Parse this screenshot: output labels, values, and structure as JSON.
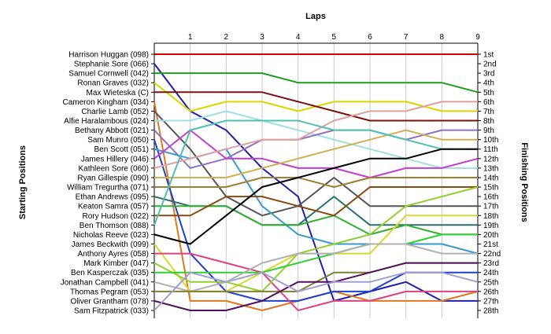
{
  "chart_data": {
    "type": "line",
    "title": "",
    "xlabel": "Laps",
    "ylabel_left": "Starting Positions",
    "ylabel_right": "Finishing Positions",
    "x_ticks": [
      1,
      2,
      3,
      4,
      5,
      6,
      7,
      8,
      9
    ],
    "xlim": [
      0,
      9
    ],
    "ylim": [
      1,
      28
    ],
    "grid": "vertical",
    "finish_labels": [
      "1st",
      "2nd",
      "3rd",
      "4th",
      "5th",
      "6th",
      "7th",
      "8th",
      "9th",
      "10th",
      "11th",
      "12th",
      "13th",
      "14th",
      "15th",
      "16th",
      "17th",
      "18th",
      "19th",
      "20th",
      "21st",
      "22nd",
      "23rd",
      "24th",
      "25th",
      "26th",
      "27th",
      "28th"
    ],
    "series": [
      {
        "name": "Harrison Huggan (098)",
        "color": "#d00000",
        "positions": [
          1,
          1,
          1,
          1,
          1,
          1,
          1,
          1,
          1,
          1
        ]
      },
      {
        "name": "Stephanie Sore (066)",
        "color": "#1f1fb0",
        "positions": [
          2,
          7,
          9,
          13,
          16,
          27,
          26,
          25,
          27,
          27
        ]
      },
      {
        "name": "Samuel Cornwell (042)",
        "color": "#1e9e1e",
        "positions": [
          3,
          3,
          3,
          3,
          4,
          4,
          4,
          4,
          4,
          5
        ]
      },
      {
        "name": "Ronan Graves (032)",
        "color": "#d8d800",
        "positions": [
          4,
          7,
          6,
          6,
          7,
          6,
          6,
          6,
          7,
          7
        ]
      },
      {
        "name": "Max Wieteska (C)",
        "color": "#7a1010",
        "positions": [
          5,
          5,
          5,
          5,
          6,
          7,
          8,
          8,
          8,
          8
        ]
      },
      {
        "name": "Cameron Kingham (034)",
        "color": "#e07820",
        "positions": [
          6,
          27,
          27,
          28,
          27,
          26,
          27,
          27,
          27,
          26
        ]
      },
      {
        "name": "Charlie Lamb (052)",
        "color": "#555555",
        "positions": [
          7,
          11,
          16,
          18,
          17,
          14,
          17,
          17,
          17,
          17
        ]
      },
      {
        "name": "Alfie Haralambous (024)",
        "color": "#a0e0e0",
        "positions": [
          8,
          8,
          7,
          8,
          9,
          10,
          11,
          12,
          13,
          13
        ]
      },
      {
        "name": "Bethany Abbott (021)",
        "color": "#9070c0",
        "positions": [
          9,
          13,
          12,
          10,
          10,
          9,
          9,
          10,
          9,
          9
        ]
      },
      {
        "name": "Sam Munro (050)",
        "color": "#2040d0",
        "positions": [
          10,
          22,
          26,
          27,
          27,
          26,
          26,
          24,
          24,
          24
        ]
      },
      {
        "name": "Ben Scott (051)",
        "color": "#3a9ad0",
        "positions": [
          11,
          12,
          11,
          17,
          20,
          21,
          21,
          21,
          21,
          22
        ]
      },
      {
        "name": "James Hillery (046)",
        "color": "#c040d0",
        "positions": [
          12,
          9,
          12,
          12,
          13,
          13,
          14,
          13,
          13,
          12
        ]
      },
      {
        "name": "Kathleen Sore (060)",
        "color": "#e0a0a0",
        "positions": [
          13,
          12,
          11,
          10,
          10,
          8,
          7,
          7,
          6,
          6
        ]
      },
      {
        "name": "Ryan Gillespie (090)",
        "color": "#d0b050",
        "positions": [
          14,
          14,
          14,
          13,
          12,
          11,
          10,
          9,
          10,
          10
        ]
      },
      {
        "name": "William Tregurtha (071)",
        "color": "#a08030",
        "positions": [
          15,
          15,
          15,
          14,
          14,
          15,
          14,
          14,
          14,
          14
        ]
      },
      {
        "name": "Ethan Andrews (095)",
        "color": "#2a7070",
        "positions": [
          16,
          17,
          17,
          19,
          19,
          16,
          19,
          19,
          19,
          19
        ]
      },
      {
        "name": "Keaton Samra (057)",
        "color": "#30b030",
        "positions": [
          17,
          17,
          17,
          19,
          19,
          18,
          20,
          19,
          20,
          20
        ]
      },
      {
        "name": "Rory Hudson (022)",
        "color": "#8a4a10",
        "positions": [
          18,
          18,
          16,
          16,
          17,
          18,
          15,
          15,
          15,
          15
        ]
      },
      {
        "name": "Ben Thomson (088)",
        "color": "#50c0b0",
        "positions": [
          19,
          9,
          8,
          8,
          8,
          9,
          9,
          10,
          11,
          11
        ]
      },
      {
        "name": "Nicholas Reeve (023)",
        "color": "#000000",
        "positions": [
          20,
          21,
          18,
          15,
          14,
          13,
          12,
          12,
          11,
          11
        ]
      },
      {
        "name": "James Beckwith (099)",
        "color": "#d8d830",
        "positions": [
          21,
          26,
          26,
          24,
          22,
          22,
          22,
          18,
          18,
          18
        ]
      },
      {
        "name": "Anthony Ayres (058)",
        "color": "#e04080",
        "positions": [
          22,
          22,
          23,
          24,
          28,
          27,
          27,
          26,
          26,
          26
        ]
      },
      {
        "name": "Mark Kimber (047)",
        "color": "#90d030",
        "positions": [
          23,
          25,
          25,
          26,
          22,
          21,
          20,
          17,
          16,
          15
        ]
      },
      {
        "name": "Ben Kasperczak (035)",
        "color": "#30d030",
        "positions": [
          24,
          24,
          24,
          24,
          23,
          22,
          21,
          21,
          20,
          20
        ]
      },
      {
        "name": "Jonathan Campbell (041)",
        "color": "#b0b0b0",
        "positions": [
          25,
          26,
          25,
          23,
          22,
          22,
          21,
          21,
          22,
          22
        ]
      },
      {
        "name": "Thomas Pegram (053)",
        "color": "#808030",
        "positions": [
          26,
          26,
          26,
          26,
          26,
          24,
          24,
          23,
          23,
          23
        ]
      },
      {
        "name": "Oliver Grantham (078)",
        "color": "#501060",
        "positions": [
          27,
          28,
          28,
          27,
          25,
          25,
          24,
          23,
          23,
          23
        ]
      },
      {
        "name": "Sam Fitzpatrick (033)",
        "color": "#a0a0d0",
        "positions": [
          28,
          24,
          25,
          24,
          26,
          25,
          25,
          24,
          24,
          25
        ]
      }
    ]
  }
}
